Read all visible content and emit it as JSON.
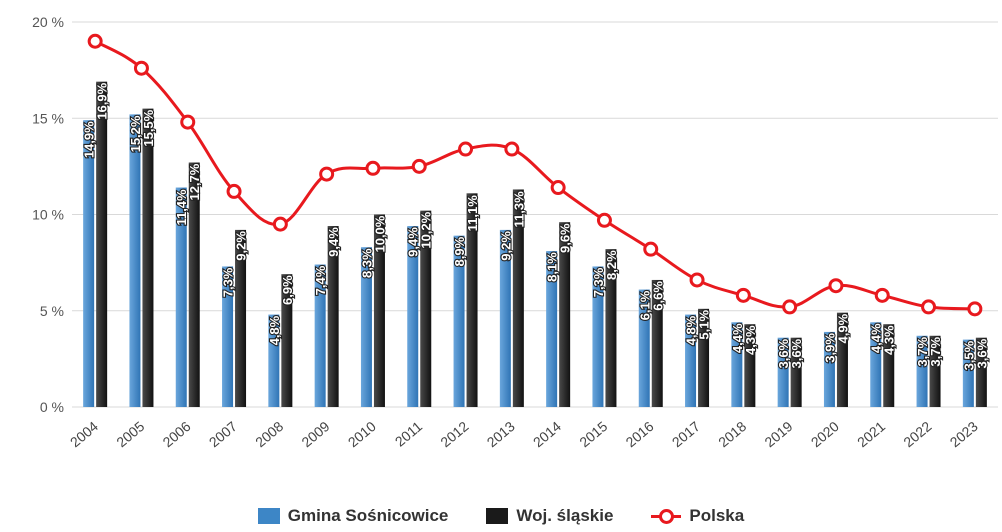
{
  "chart_data": {
    "type": "bar",
    "categories": [
      "2004",
      "2005",
      "2006",
      "2007",
      "2008",
      "2009",
      "2010",
      "2011",
      "2012",
      "2013",
      "2014",
      "2015",
      "2016",
      "2017",
      "2018",
      "2019",
      "2020",
      "2021",
      "2022",
      "2023"
    ],
    "series": [
      {
        "name": "Gmina Sośnicowice",
        "type": "bar",
        "color": "#3d86c6",
        "values": [
          14.9,
          15.2,
          11.4,
          7.3,
          4.8,
          7.4,
          8.3,
          9.4,
          8.9,
          9.2,
          8.1,
          7.3,
          6.1,
          4.8,
          4.4,
          3.6,
          3.9,
          4.4,
          3.7,
          3.5
        ],
        "labels": [
          "14,9%",
          "15,2%",
          "11,4%",
          "7,3%",
          "4,8%",
          "7,4%",
          "8,3%",
          "9,4%",
          "8,9%",
          "9,2%",
          "8,1%",
          "7,3%",
          "6,1%",
          "4,8%",
          "4,4%",
          "3,6%",
          "3,9%",
          "4,4%",
          "3,7%",
          "3,5%"
        ]
      },
      {
        "name": "Woj. śląskie",
        "type": "bar",
        "color": "#1a1a1a",
        "values": [
          16.9,
          15.5,
          12.7,
          9.2,
          6.9,
          9.4,
          10.0,
          10.2,
          11.1,
          11.3,
          9.6,
          8.2,
          6.6,
          5.1,
          4.3,
          3.6,
          4.9,
          4.3,
          3.7,
          3.6
        ],
        "labels": [
          "16,9%",
          "15,5%",
          "12,7%",
          "9,2%",
          "6,9%",
          "9,4%",
          "10,0%",
          "10,2%",
          "11,1%",
          "11,3%",
          "9,6%",
          "8,2%",
          "6,6%",
          "5,1%",
          "4,3%",
          "3,6%",
          "4,9%",
          "4,3%",
          "3,7%",
          "3,6%"
        ]
      },
      {
        "name": "Polska",
        "type": "line",
        "color": "#e8191e",
        "values": [
          19.0,
          17.6,
          14.8,
          11.2,
          9.5,
          12.1,
          12.4,
          12.5,
          13.4,
          13.4,
          11.4,
          9.7,
          8.2,
          6.6,
          5.8,
          5.2,
          6.3,
          5.8,
          5.2,
          5.1
        ]
      }
    ],
    "yticks": [
      "0 %",
      "5 %",
      "10 %",
      "15 %",
      "20 %"
    ],
    "ytick_values": [
      0,
      5,
      10,
      15,
      20
    ],
    "ylim": [
      0,
      20
    ],
    "grid": true,
    "legend_position": "bottom"
  }
}
